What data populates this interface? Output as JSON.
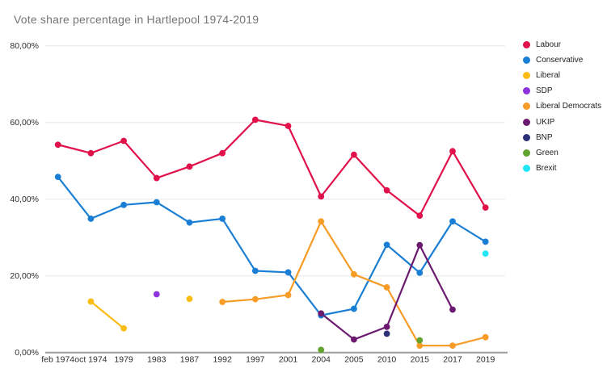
{
  "title": "Vote share percentage in Hartlepool 1974-2019",
  "chart_data": {
    "type": "line",
    "title": "Vote share percentage in Hartlepool 1974-2019",
    "xlabel": "",
    "ylabel": "",
    "ylim": [
      0,
      80
    ],
    "grid": true,
    "legend_position": "right",
    "y_ticks": {
      "values": [
        0,
        20,
        40,
        60,
        80
      ],
      "labels": [
        "0,00%",
        "20,00%",
        "40,00%",
        "60,00%",
        "80,00%"
      ]
    },
    "categories": [
      "feb 1974",
      "oct 1974",
      "1979",
      "1983",
      "1987",
      "1992",
      "1997",
      "2001",
      "2004",
      "2005",
      "2010",
      "2015",
      "2017",
      "2019"
    ],
    "series": [
      {
        "name": "Labour",
        "color": "#e0114b",
        "values": [
          54.2,
          52.0,
          55.2,
          45.5,
          48.5,
          52.0,
          60.7,
          59.1,
          40.7,
          51.6,
          42.3,
          35.7,
          52.5,
          37.8
        ]
      },
      {
        "name": "Conservative",
        "color": "#1a7fd4",
        "values": [
          45.8,
          34.9,
          38.5,
          39.2,
          33.9,
          34.9,
          21.3,
          20.9,
          9.7,
          11.4,
          28.1,
          20.8,
          34.2,
          28.9
        ]
      },
      {
        "name": "Liberal",
        "color": "#fbbc15",
        "values": [
          null,
          13.3,
          6.3,
          null,
          14.0,
          null,
          null,
          null,
          null,
          null,
          null,
          null,
          null,
          null
        ]
      },
      {
        "name": "SDP",
        "color": "#8c33dc",
        "values": [
          null,
          null,
          null,
          15.2,
          null,
          null,
          null,
          null,
          null,
          null,
          null,
          null,
          null,
          null
        ]
      },
      {
        "name": "Liberal Democrats",
        "color": "#f69c27",
        "values": [
          null,
          null,
          null,
          null,
          null,
          13.2,
          13.9,
          15.0,
          34.2,
          20.4,
          17.0,
          1.8,
          1.8,
          4.0
        ]
      },
      {
        "name": "UKIP",
        "color": "#6c1a70",
        "values": [
          null,
          null,
          null,
          null,
          null,
          null,
          null,
          null,
          10.2,
          3.4,
          6.7,
          28.0,
          11.2,
          null
        ]
      },
      {
        "name": "BNP",
        "color": "#2d3178",
        "values": [
          null,
          null,
          null,
          null,
          null,
          null,
          null,
          null,
          null,
          null,
          4.9,
          null,
          null,
          null
        ]
      },
      {
        "name": "Green",
        "color": "#62a22e",
        "values": [
          null,
          null,
          null,
          null,
          null,
          null,
          null,
          null,
          0.7,
          null,
          null,
          3.2,
          null,
          null
        ]
      },
      {
        "name": "Brexit",
        "color": "#20e6f6",
        "values": [
          null,
          null,
          null,
          null,
          null,
          null,
          null,
          null,
          null,
          null,
          null,
          null,
          null,
          25.8
        ]
      }
    ]
  },
  "colors": {
    "background": "#ffffff",
    "gridline": "#e7e7e7",
    "axis": "#9e9e9e",
    "title_text": "#757575",
    "tick_text": "#2e2e2e",
    "legend_text": "#1f1f1f"
  }
}
